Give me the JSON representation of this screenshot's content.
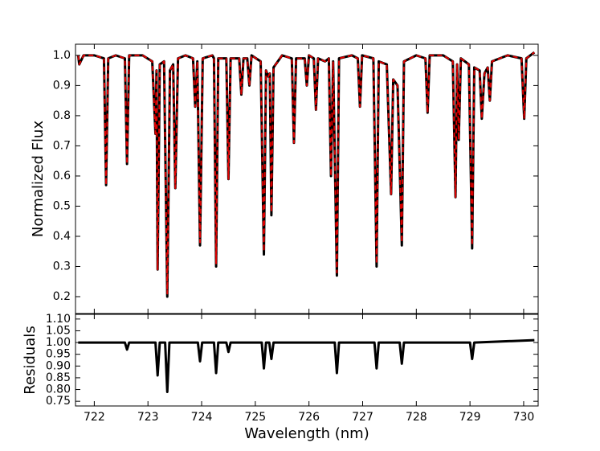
{
  "chart_data": [
    {
      "type": "line",
      "ylabel": "Normalized Flux",
      "x": [
        721.7,
        721.72,
        721.8,
        722.0,
        722.18,
        722.22,
        722.26,
        722.4,
        722.57,
        722.61,
        722.65,
        722.9,
        723.08,
        723.14,
        723.16,
        723.18,
        723.22,
        723.3,
        723.36,
        723.41,
        723.47,
        723.51,
        723.56,
        723.7,
        723.84,
        723.88,
        723.92,
        723.97,
        724.02,
        724.2,
        724.23,
        724.27,
        724.31,
        724.46,
        724.5,
        724.54,
        724.7,
        724.74,
        724.78,
        724.85,
        724.89,
        724.93,
        725.1,
        725.16,
        725.2,
        725.24,
        725.27,
        725.3,
        725.34,
        725.5,
        725.68,
        725.72,
        725.76,
        725.92,
        725.96,
        726.0,
        726.09,
        726.13,
        726.17,
        726.3,
        726.37,
        726.41,
        726.45,
        726.52,
        726.56,
        726.8,
        726.91,
        726.95,
        726.99,
        727.2,
        727.26,
        727.3,
        727.45,
        727.53,
        727.57,
        727.65,
        727.73,
        727.77,
        728.0,
        728.17,
        728.21,
        728.25,
        728.5,
        728.68,
        728.73,
        728.76,
        728.79,
        728.83,
        728.98,
        729.04,
        729.08,
        729.18,
        729.22,
        729.27,
        729.33,
        729.37,
        729.41,
        729.7,
        729.96,
        730.01,
        730.05,
        730.2
      ],
      "series": [
        {
          "color": "#000000",
          "linestyle": "solid",
          "values": [
            1.0,
            0.97,
            1.0,
            1.0,
            0.99,
            0.57,
            0.99,
            1.0,
            0.99,
            0.64,
            1.0,
            1.0,
            0.98,
            0.74,
            0.95,
            0.29,
            0.97,
            0.98,
            0.2,
            0.95,
            0.97,
            0.56,
            0.99,
            1.0,
            0.99,
            0.83,
            0.98,
            0.37,
            0.99,
            1.0,
            0.99,
            0.3,
            0.99,
            0.99,
            0.59,
            0.99,
            0.99,
            0.87,
            0.99,
            0.99,
            0.9,
            1.0,
            0.98,
            0.34,
            0.95,
            0.93,
            0.94,
            0.47,
            0.96,
            1.0,
            0.99,
            0.71,
            0.99,
            0.99,
            0.9,
            1.0,
            0.99,
            0.82,
            0.99,
            0.98,
            0.99,
            0.6,
            0.98,
            0.27,
            0.99,
            1.0,
            0.99,
            0.83,
            1.0,
            0.99,
            0.3,
            0.98,
            0.97,
            0.54,
            0.92,
            0.9,
            0.37,
            0.98,
            1.0,
            0.99,
            0.81,
            1.0,
            1.0,
            0.98,
            0.53,
            0.97,
            0.72,
            0.99,
            0.97,
            0.36,
            0.96,
            0.95,
            0.79,
            0.94,
            0.96,
            0.85,
            0.98,
            1.0,
            0.99,
            0.79,
            0.99,
            1.01
          ]
        },
        {
          "color": "#dd0000",
          "linestyle": "dashed",
          "values": [
            1.0,
            0.97,
            1.0,
            1.0,
            0.99,
            0.57,
            0.99,
            1.0,
            0.99,
            0.64,
            1.0,
            1.0,
            0.98,
            0.74,
            0.95,
            0.29,
            0.97,
            0.98,
            0.21,
            0.95,
            0.97,
            0.56,
            0.99,
            1.0,
            0.99,
            0.83,
            0.98,
            0.38,
            0.99,
            1.0,
            0.99,
            0.31,
            0.99,
            0.99,
            0.59,
            0.99,
            0.99,
            0.87,
            0.99,
            0.99,
            0.9,
            1.0,
            0.98,
            0.35,
            0.95,
            0.93,
            0.94,
            0.48,
            0.96,
            1.0,
            0.99,
            0.71,
            0.99,
            0.99,
            0.9,
            1.0,
            0.99,
            0.82,
            0.99,
            0.98,
            0.99,
            0.6,
            0.98,
            0.28,
            0.99,
            1.0,
            0.99,
            0.83,
            1.0,
            0.99,
            0.31,
            0.98,
            0.97,
            0.54,
            0.92,
            0.9,
            0.38,
            0.98,
            1.0,
            0.99,
            0.81,
            1.0,
            1.0,
            0.98,
            0.53,
            0.97,
            0.72,
            0.99,
            0.97,
            0.37,
            0.96,
            0.95,
            0.79,
            0.94,
            0.96,
            0.85,
            0.98,
            1.0,
            0.99,
            0.79,
            0.99,
            1.01
          ]
        }
      ],
      "xlim": [
        721.65,
        730.27
      ],
      "ylim": [
        0.144,
        1.037
      ],
      "xticks": [
        722,
        723,
        724,
        725,
        726,
        727,
        728,
        729,
        730
      ],
      "yticks": [
        0.2,
        0.3,
        0.4,
        0.5,
        0.6,
        0.7,
        0.8,
        0.9,
        {
          "value": 1.0,
          "label": "1.0"
        }
      ]
    },
    {
      "type": "line",
      "ylabel": "Residuals",
      "xlabel": "Wavelength (nm)",
      "x": [
        721.7,
        722.57,
        722.61,
        722.65,
        723.14,
        723.18,
        723.22,
        723.32,
        723.36,
        723.4,
        723.93,
        723.97,
        724.01,
        724.23,
        724.27,
        724.31,
        724.46,
        724.5,
        724.54,
        725.12,
        725.16,
        725.2,
        725.26,
        725.3,
        725.34,
        726.48,
        726.52,
        726.56,
        727.22,
        727.26,
        727.3,
        727.69,
        727.73,
        727.77,
        729.0,
        729.04,
        729.08,
        730.2
      ],
      "series": [
        {
          "color": "#000000",
          "linestyle": "solid",
          "values": [
            1.0,
            1.0,
            0.97,
            1.0,
            1.0,
            0.86,
            1.0,
            1.0,
            0.79,
            1.0,
            1.0,
            0.92,
            1.0,
            1.0,
            0.87,
            1.0,
            1.0,
            0.96,
            1.0,
            1.0,
            0.89,
            1.0,
            1.0,
            0.93,
            1.0,
            1.0,
            0.87,
            1.0,
            1.0,
            0.89,
            1.0,
            1.0,
            0.91,
            1.0,
            1.0,
            0.93,
            1.0,
            1.01
          ]
        }
      ],
      "xlim": [
        721.65,
        730.27
      ],
      "ylim": [
        0.73,
        1.12
      ],
      "xticks": [
        722,
        723,
        724,
        725,
        726,
        727,
        728,
        729,
        730
      ],
      "yticks": [
        0.75,
        {
          "value": 0.8,
          "label": "0.80"
        },
        0.85,
        {
          "value": 0.9,
          "label": "0.90"
        },
        0.95,
        {
          "value": 1.0,
          "label": "1.00"
        },
        1.05,
        {
          "value": 1.1,
          "label": "1.10"
        }
      ]
    }
  ]
}
